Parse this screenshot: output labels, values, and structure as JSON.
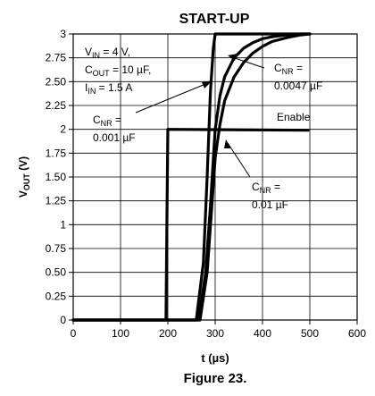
{
  "chart_data": {
    "type": "line",
    "title": "START-UP",
    "caption": "Figure 23.",
    "xlabel": "t (µs)",
    "ylabel_main": "V",
    "ylabel_sub": "OUT",
    "ylabel_unit": "(V)",
    "xlim": [
      0,
      600
    ],
    "ylim": [
      0,
      3
    ],
    "grid": true,
    "x_ticks": [
      0,
      100,
      200,
      300,
      400,
      500,
      600
    ],
    "x_tick_labels": [
      "0",
      "100",
      "200",
      "300",
      "400",
      "500",
      "600"
    ],
    "y_ticks": [
      0,
      0.25,
      0.5,
      0.75,
      1,
      1.25,
      1.5,
      1.75,
      2,
      2.25,
      2.5,
      2.75,
      3
    ],
    "y_tick_labels": [
      "0",
      "0.25",
      "0.50",
      "0.75",
      "1",
      "1.25",
      "1.50",
      "1.75",
      "2",
      "2.25",
      "2.50",
      "2.75",
      "3"
    ],
    "series": [
      {
        "name": "Enable",
        "x": [
          0,
          196,
          198,
          200,
          496
        ],
        "y": [
          0,
          0,
          1.0,
          2.0,
          1.99
        ]
      },
      {
        "name": "CNR = 0.001 µF",
        "x": [
          0,
          260,
          275,
          283,
          290,
          296,
          300,
          303,
          500
        ],
        "y": [
          0,
          0,
          0.6,
          1.5,
          2.4,
          2.85,
          3.0,
          3.0,
          3.0
        ]
      },
      {
        "name": "CNR = 0.0047 µF",
        "x": [
          0,
          265,
          280,
          290,
          300,
          310,
          320,
          340,
          360,
          380,
          400,
          420,
          450,
          480,
          500
        ],
        "y": [
          0,
          0,
          0.5,
          1.2,
          2.0,
          2.35,
          2.55,
          2.75,
          2.85,
          2.91,
          2.95,
          2.97,
          2.99,
          3.0,
          3.0
        ]
      },
      {
        "name": "CNR = 0.01 µF",
        "x": [
          0,
          268,
          283,
          293,
          300,
          310,
          320,
          340,
          360,
          380,
          400,
          420,
          450,
          480,
          500
        ],
        "y": [
          0,
          0,
          0.5,
          1.2,
          1.7,
          2.05,
          2.3,
          2.55,
          2.7,
          2.8,
          2.87,
          2.92,
          2.96,
          2.99,
          3.0
        ]
      }
    ],
    "annotations": {
      "conditions_line1_main": "V",
      "conditions_line1_sub": "IN",
      "conditions_line1_rest": " = 4 V,",
      "conditions_line2_main": "C",
      "conditions_line2_sub": "OUT",
      "conditions_line2_rest": " = 10 µF,",
      "conditions_line3_main": "I",
      "conditions_line3_sub": "IN",
      "conditions_line3_rest": " = 1.5 A",
      "cnr1_main": "C",
      "cnr1_sub": "NR",
      "cnr1_eq": " =",
      "cnr1_value": "0.001 µF",
      "cnr2_main": "C",
      "cnr2_sub": "NR",
      "cnr2_eq": " =",
      "cnr2_value": "0.0047 µF",
      "cnr3_main": "C",
      "cnr3_sub": "NR",
      "cnr3_eq": " =",
      "cnr3_value": "0.01 µF",
      "enable_label": "Enable"
    }
  }
}
